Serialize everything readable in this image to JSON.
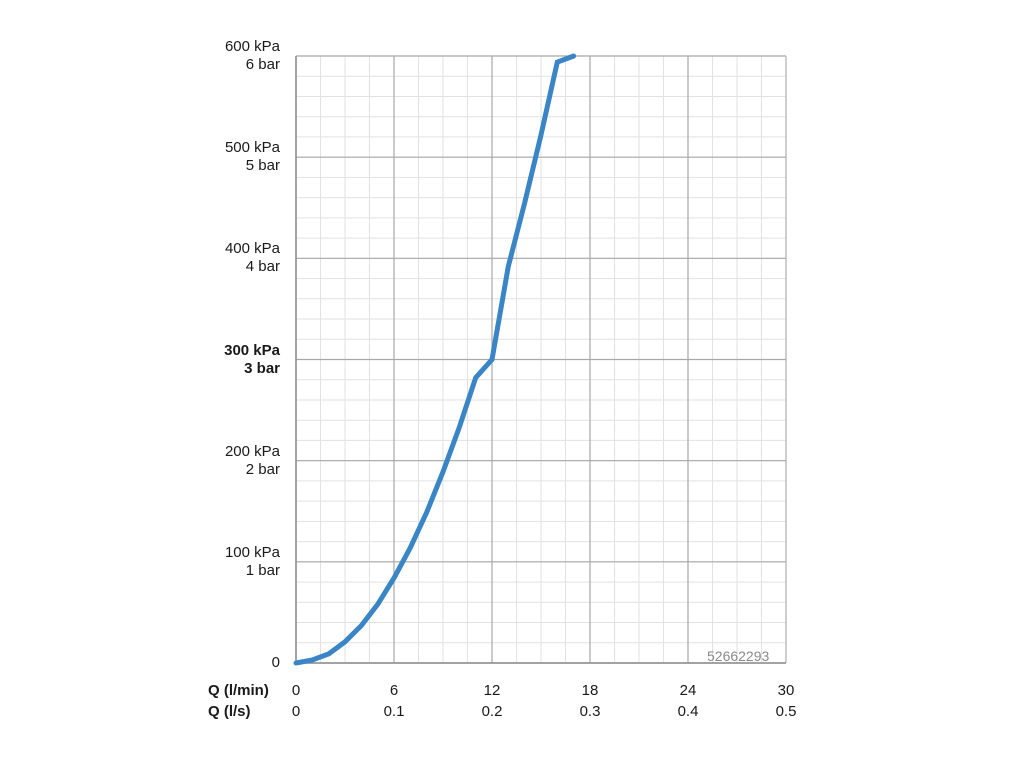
{
  "chart_data": {
    "type": "line",
    "xlabel_primary": "Q (l/min)",
    "xlabel_secondary": "Q (l/s)",
    "xlim": [
      0,
      30
    ],
    "ylim": [
      0,
      600
    ],
    "x_ticks_primary": [
      "0",
      "6",
      "12",
      "18",
      "24",
      "30"
    ],
    "x_ticks_secondary": [
      "0",
      "0.1",
      "0.2",
      "0.3",
      "0.4",
      "0.5"
    ],
    "y_ticks": [
      {
        "value": 600,
        "kpa": "600 kPa",
        "bar": "6 bar",
        "bold": false
      },
      {
        "value": 500,
        "kpa": "500 kPa",
        "bar": "5 bar",
        "bold": false
      },
      {
        "value": 400,
        "kpa": "400 kPa",
        "bar": "4 bar",
        "bold": false
      },
      {
        "value": 300,
        "kpa": "300 kPa",
        "bar": "3 bar",
        "bold": true
      },
      {
        "value": 200,
        "kpa": "200 kPa",
        "bar": "2 bar",
        "bold": false
      },
      {
        "value": 100,
        "kpa": "100 kPa",
        "bar": "1 bar",
        "bold": false
      },
      {
        "value": 0,
        "kpa": "0",
        "bar": "",
        "bold": false
      }
    ],
    "grid": true,
    "series": [
      {
        "color": "#3a85c6",
        "x": [
          0,
          1,
          2,
          3,
          4,
          5,
          6,
          7,
          8,
          9,
          10,
          11,
          12,
          13,
          14,
          15,
          16,
          17
        ],
        "y": [
          0,
          3,
          9,
          21,
          37,
          58,
          84,
          114,
          149,
          189,
          233,
          282,
          300,
          392,
          455,
          522,
          594,
          620
        ]
      }
    ],
    "watermark": "52662293"
  }
}
